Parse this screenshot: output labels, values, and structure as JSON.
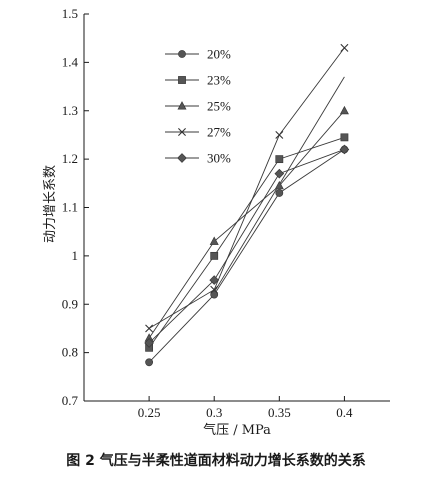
{
  "caption": "图 2   气压与半柔性道面材料动力增长系数的关系",
  "chart_data": {
    "type": "line",
    "xlabel": "气压 / MPa",
    "ylabel": "动力增长系数",
    "x": [
      0.25,
      0.3,
      0.35,
      0.4
    ],
    "xticks": [
      "0.25",
      "0.3",
      "0.35",
      "0.4"
    ],
    "xlim": [
      0.2,
      0.435
    ],
    "ylim": [
      0.7,
      1.5
    ],
    "yticks": [
      "0.7",
      "0.8",
      "0.9",
      "1",
      "1.1",
      "1.2",
      "1.3",
      "1.4",
      "1.5"
    ],
    "grid": false,
    "legend_position": "top-left",
    "series": [
      {
        "name": "20%",
        "marker": "circle",
        "values": [
          0.78,
          0.92,
          1.13,
          1.22
        ]
      },
      {
        "name": "23%",
        "marker": "square",
        "values": [
          0.81,
          1.0,
          1.2,
          1.245
        ]
      },
      {
        "name": "25%",
        "marker": "triangle",
        "values": [
          0.83,
          1.03,
          1.145,
          1.3
        ]
      },
      {
        "name": "27%",
        "marker": "x",
        "values": [
          0.85,
          0.93,
          1.25,
          1.43
        ]
      },
      {
        "name": "30%",
        "marker": "diamond",
        "values": [
          0.82,
          0.95,
          1.17,
          1.22
        ]
      }
    ],
    "extra_line": {
      "x": [
        0.3,
        0.4
      ],
      "values": [
        0.925,
        1.37
      ]
    }
  }
}
